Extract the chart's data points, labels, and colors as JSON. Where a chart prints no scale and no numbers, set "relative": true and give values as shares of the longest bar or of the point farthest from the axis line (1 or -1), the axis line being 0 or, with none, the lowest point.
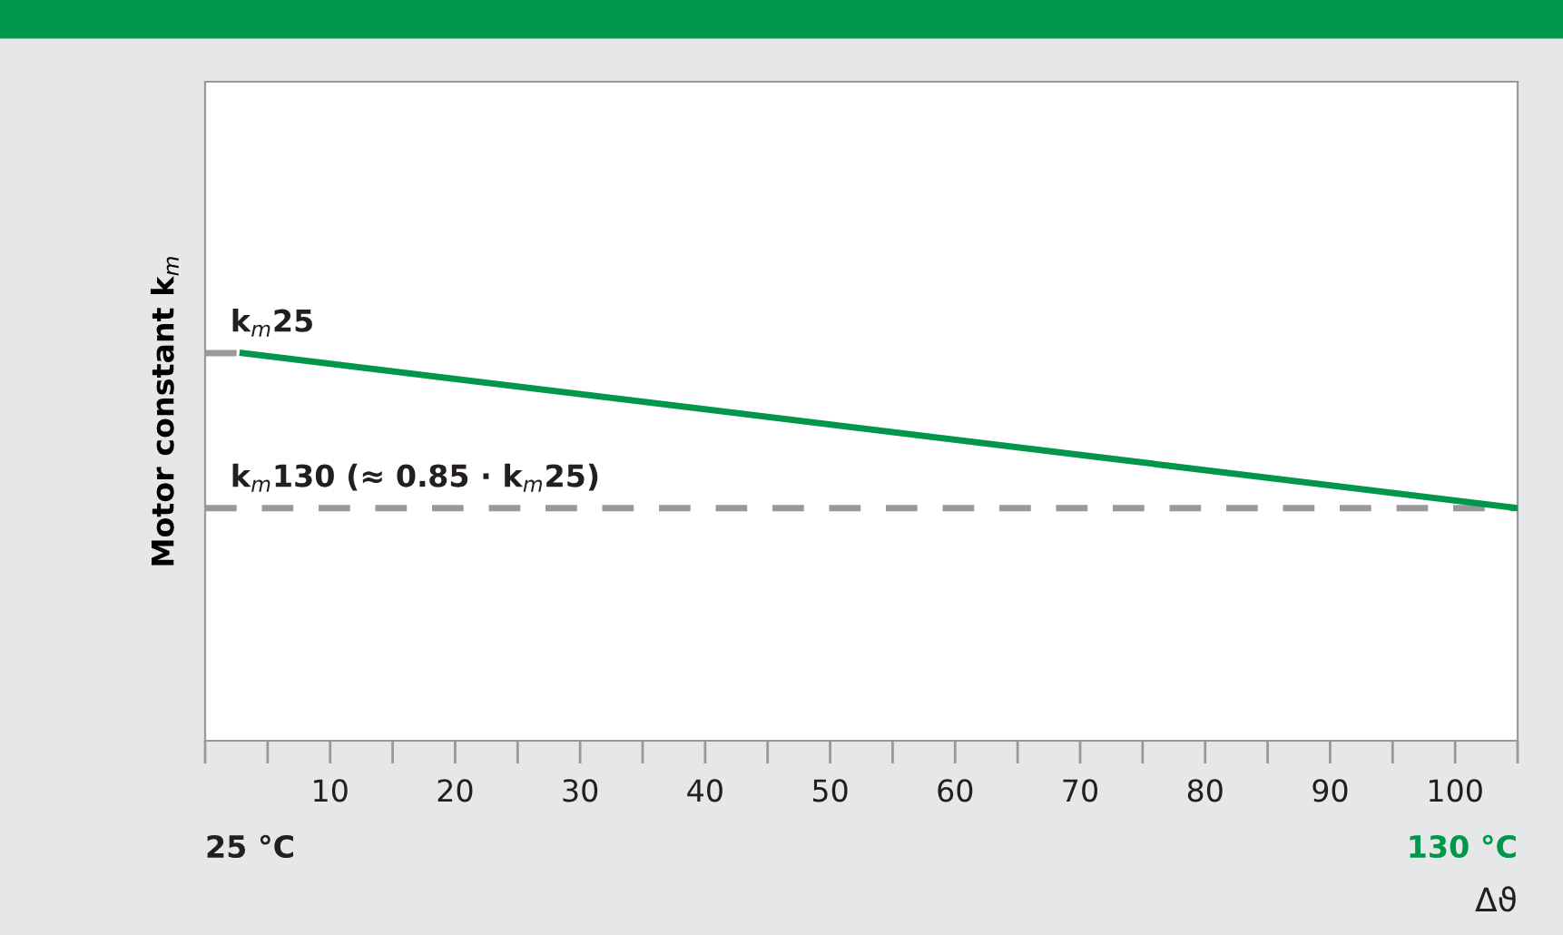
{
  "chart_data": {
    "type": "line",
    "relative": true,
    "ylabel": "Motor constant k$_{m}$",
    "xlabel": "Δϑ",
    "x": [
      3,
      105
    ],
    "series": [
      {
        "color": "#00974a",
        "values": [
          1,
          0.6
        ]
      }
    ],
    "xlim": [
      0,
      105
    ],
    "xticks": [
      {
        "value": 0,
        "label": null
      },
      {
        "value": 5,
        "label": null
      },
      10,
      {
        "value": 15,
        "label": null
      },
      20,
      {
        "value": 25,
        "label": null
      },
      30,
      {
        "value": 35,
        "label": null
      },
      40,
      {
        "value": 45,
        "label": null
      },
      50,
      {
        "value": 55,
        "label": null
      },
      60,
      {
        "value": 65,
        "label": null
      },
      70,
      {
        "value": 75,
        "label": null
      },
      80,
      {
        "value": 85,
        "label": null
      },
      90,
      {
        "value": 95,
        "label": null
      },
      100,
      {
        "value": 105,
        "label": null
      }
    ],
    "ref_lines": [
      {
        "axis": "y",
        "value": 1,
        "label": "k$_{m}$25",
        "color": "#999999",
        "line_style": "dashed"
      },
      {
        "axis": "y",
        "value": 0.6,
        "label": "k$_{m}$130 (≈ 0.85 · k$_{m}$25)",
        "color": "#999999",
        "line_style": "dashed"
      }
    ],
    "annotations": [
      "25 °C",
      "130 °C"
    ],
    "grid": false,
    "legend": false,
    "marker": "none",
    "line_style": "solid"
  }
}
